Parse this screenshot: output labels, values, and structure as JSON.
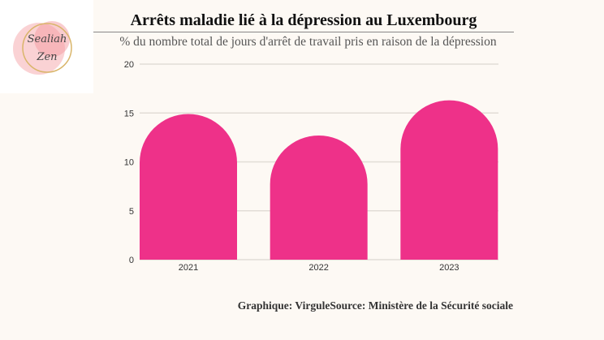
{
  "title": "Arrêts maladie lié à la dépression au Luxembourg",
  "subtitle": "% du nombre total de jours d'arrêt de travail pris en raison de la dépression",
  "source": "Graphique: VirguleSource: Ministère de la Sécurité sociale",
  "logo": {
    "text": "Sealiah Zen"
  },
  "chart_data": {
    "type": "bar",
    "title": "Arrêts maladie lié à la dépression au Luxembourg",
    "subtitle": "% du nombre total de jours d'arrêt de travail pris en raison de la dépression",
    "categories": [
      "2021",
      "2022",
      "2023"
    ],
    "values": [
      14.9,
      12.7,
      16.3
    ],
    "ylim": [
      0,
      20
    ],
    "yticks": [
      "0",
      "5",
      "10",
      "15",
      "20"
    ],
    "grid": true,
    "bar_color": "#ee3189"
  }
}
